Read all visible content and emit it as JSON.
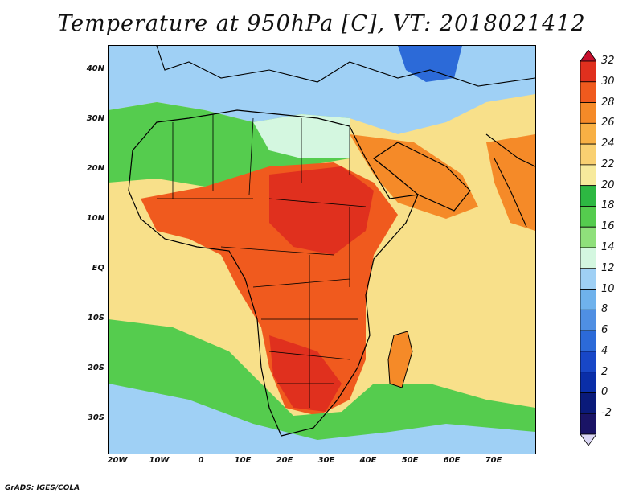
{
  "title": "Temperature at 950hPa [C], VT: 2018021412",
  "credit": "GrADS: IGES/COLA",
  "map": {
    "lat_labels": [
      "40N",
      "30N",
      "20N",
      "10N",
      "EQ",
      "10S",
      "20S",
      "30S"
    ],
    "lon_labels": [
      "20W",
      "10W",
      "0",
      "10E",
      "20E",
      "30E",
      "40E",
      "50E",
      "60E",
      "70E"
    ],
    "colors": {
      "ocean_cool": "#9fd0f5",
      "ocean_warm": "#f8e08a",
      "land_hot": "#e64a19",
      "border": "#000000"
    }
  },
  "colorbar": {
    "labels": [
      "32",
      "30",
      "28",
      "26",
      "24",
      "22",
      "20",
      "18",
      "16",
      "14",
      "12",
      "10",
      "8",
      "6",
      "4",
      "2",
      "0",
      "-2"
    ],
    "colors": [
      "#c8102e",
      "#e0301e",
      "#f05a1e",
      "#f58a28",
      "#f8b044",
      "#f9d071",
      "#f7ea9c",
      "#2db842",
      "#55cc4e",
      "#8fe07b",
      "#d4f7e0",
      "#9fd0f5",
      "#6fb2ec",
      "#4f8fe3",
      "#2c6ad8",
      "#1847c7",
      "#0a2ea8",
      "#0a1a7a",
      "#1a1466",
      "#dcd8f5"
    ]
  }
}
